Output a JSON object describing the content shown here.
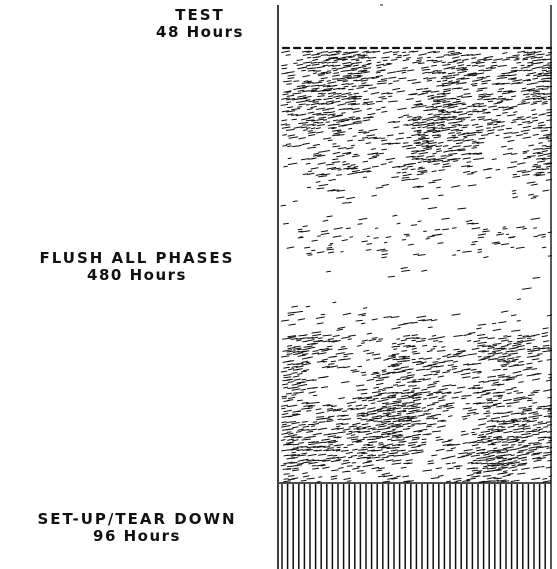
{
  "segments": [
    {
      "name": "TEST",
      "duration": "48 Hours",
      "hours": 48,
      "pattern": "stipple-dense"
    },
    {
      "name": "FLUSH ALL PHASES",
      "duration": "480 Hours",
      "hours": 480,
      "pattern": "stipple-sparse"
    },
    {
      "name": "SET-UP/TEAR DOWN",
      "duration": "96 Hours",
      "hours": 96,
      "pattern": "vertical-lines"
    }
  ],
  "colors": {
    "ink": "#111111",
    "background": "#ffffff"
  }
}
